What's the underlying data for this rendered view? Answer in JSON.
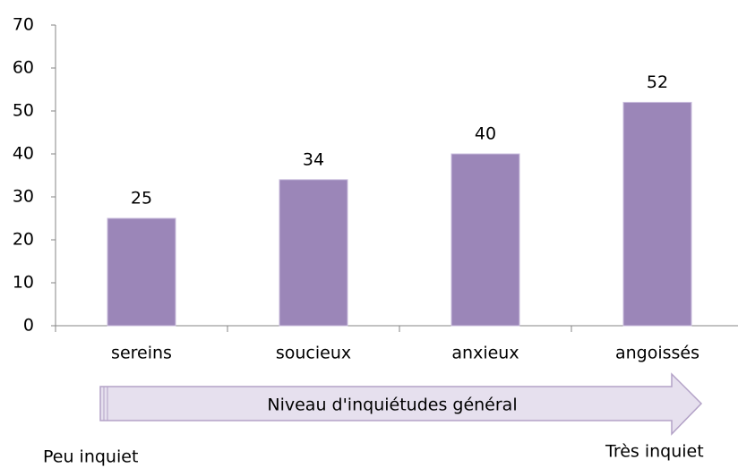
{
  "chart_data": {
    "type": "bar",
    "categories": [
      "sereins",
      "soucieux",
      "anxieux",
      "angoissés"
    ],
    "values": [
      25,
      34,
      40,
      52
    ],
    "color": "#9b86b8",
    "ylim": [
      0,
      70
    ],
    "yticks": [
      0,
      10,
      20,
      30,
      40,
      50,
      60,
      70
    ],
    "grid": false,
    "annotations": {
      "arrow": "Niveau d'inquiétudes général",
      "low": "Peu inquiet",
      "high": "Très inquiet"
    }
  }
}
